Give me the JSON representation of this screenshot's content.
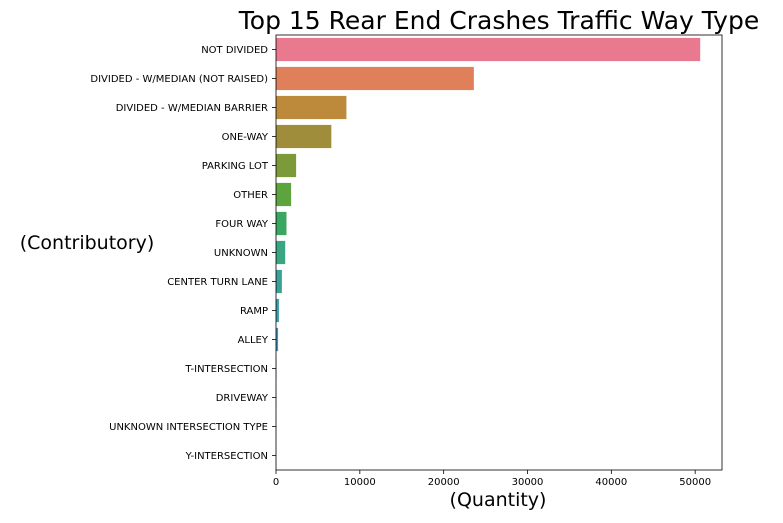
{
  "chart_data": {
    "type": "bar",
    "orientation": "horizontal",
    "title": "Top 15 Rear End Crashes Traffic Way Type",
    "xlabel": "(Quantity)",
    "ylabel": "(Contributory)",
    "categories": [
      "NOT DIVIDED",
      "DIVIDED - W/MEDIAN (NOT RAISED)",
      "DIVIDED - W/MEDIAN BARRIER",
      "ONE-WAY",
      "PARKING LOT",
      "OTHER",
      "FOUR WAY",
      "UNKNOWN",
      "CENTER TURN LANE",
      "RAMP",
      "ALLEY",
      "T-INTERSECTION",
      "DRIVEWAY",
      "UNKNOWN INTERSECTION TYPE",
      "Y-INTERSECTION"
    ],
    "values": [
      50600,
      23600,
      8400,
      6600,
      2400,
      1800,
      1250,
      1100,
      700,
      350,
      250,
      60,
      40,
      30,
      20
    ],
    "colors": [
      "#e8798e",
      "#e0805a",
      "#bc8a3a",
      "#a08d3b",
      "#7d9a3a",
      "#5ca43e",
      "#3aa760",
      "#3aa583",
      "#39a196",
      "#3a9ea7",
      "#3b97bb",
      "#7fa0de",
      "#b29ae6",
      "#d38ee3",
      "#e78ac9"
    ],
    "xlim": [
      0,
      53200
    ],
    "xticks": [
      0,
      10000,
      20000,
      30000,
      40000,
      50000
    ],
    "grid": false,
    "legend": "none"
  }
}
